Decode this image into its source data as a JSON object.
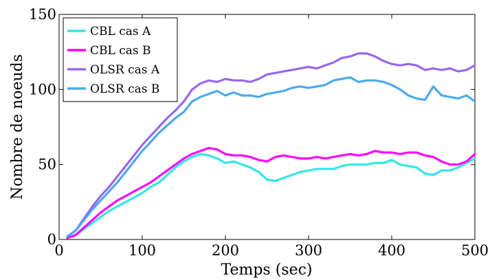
{
  "chart_data": {
    "type": "line",
    "xlabel": "Temps (sec)",
    "ylabel": "Nombre de noeuds",
    "xlim": [
      0,
      500
    ],
    "ylim": [
      0,
      150
    ],
    "xticks": [
      "0",
      "100",
      "200",
      "300",
      "400",
      "500"
    ],
    "yticks": [
      "0",
      "50",
      "100",
      "150"
    ],
    "grid": false,
    "legend_position": "top-left",
    "x": [
      10,
      20,
      30,
      40,
      50,
      60,
      70,
      80,
      90,
      100,
      110,
      120,
      130,
      140,
      150,
      160,
      170,
      180,
      190,
      200,
      210,
      220,
      230,
      240,
      250,
      260,
      270,
      280,
      290,
      300,
      310,
      320,
      330,
      340,
      350,
      360,
      370,
      380,
      390,
      400,
      410,
      420,
      430,
      440,
      450,
      460,
      470,
      480,
      490,
      500
    ],
    "series": [
      {
        "name": "CBL cas A",
        "color": "#33e6e6",
        "values": [
          1,
          3,
          7,
          11,
          15,
          19,
          22,
          25,
          28,
          31,
          35,
          38,
          43,
          48,
          52,
          55,
          57,
          56,
          54,
          51,
          52,
          50,
          48,
          45,
          40,
          39,
          41,
          43,
          45,
          46,
          47,
          47,
          47,
          49,
          50,
          50,
          50,
          51,
          51,
          53,
          50,
          49,
          48,
          44,
          43,
          46,
          46,
          48,
          51,
          54
        ]
      },
      {
        "name": "CBL cas B",
        "color": "#ff00ff",
        "values": [
          1,
          3,
          8,
          13,
          18,
          22,
          26,
          29,
          32,
          35,
          38,
          42,
          46,
          50,
          54,
          57,
          59,
          61,
          60,
          57,
          56,
          56,
          55,
          53,
          52,
          55,
          56,
          55,
          54,
          54,
          55,
          54,
          55,
          56,
          57,
          56,
          57,
          59,
          58,
          58,
          57,
          58,
          58,
          56,
          55,
          52,
          50,
          50,
          52,
          57
        ]
      },
      {
        "name": "OLSR cas A",
        "color": "#9966ee",
        "values": [
          2,
          6,
          14,
          22,
          29,
          35,
          42,
          49,
          56,
          63,
          69,
          75,
          81,
          86,
          92,
          100,
          104,
          106,
          105,
          107,
          106,
          106,
          105,
          107,
          110,
          111,
          112,
          113,
          114,
          115,
          114,
          116,
          118,
          121,
          122,
          124,
          124,
          122,
          119,
          117,
          116,
          117,
          116,
          113,
          114,
          113,
          114,
          112,
          113,
          116
        ]
      },
      {
        "name": "OLSR cas B",
        "color": "#4aaaee",
        "values": [
          2,
          6,
          13,
          20,
          26,
          32,
          38,
          45,
          52,
          59,
          65,
          71,
          76,
          81,
          85,
          92,
          95,
          97,
          99,
          96,
          98,
          96,
          96,
          95,
          97,
          98,
          99,
          101,
          102,
          101,
          102,
          103,
          106,
          107,
          108,
          105,
          106,
          106,
          105,
          103,
          100,
          96,
          94,
          93,
          102,
          96,
          95,
          94,
          96,
          92
        ]
      }
    ]
  }
}
